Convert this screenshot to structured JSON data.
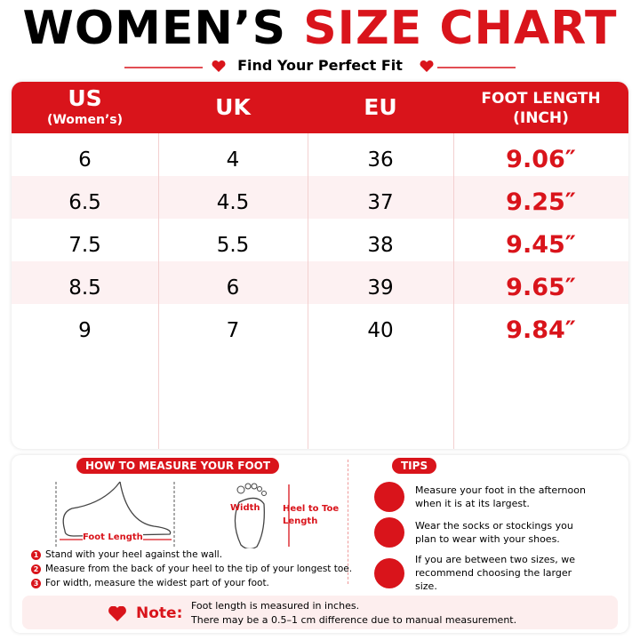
{
  "header": {
    "title_black": "WOMEN’S",
    "title_red": "SIZE CHART",
    "subtitle": "Find Your Perfect Fit"
  },
  "table": {
    "headers": [
      {
        "label": "US",
        "sub": "(Women’s)"
      },
      {
        "label": "UK"
      },
      {
        "label": "EU"
      },
      {
        "label": "FOOT LENGTH",
        "sub": "(INCH)"
      }
    ],
    "rows": [
      [
        "6",
        "4",
        "36",
        "9.06″"
      ],
      [
        "6.5",
        "4.5",
        "37",
        "9.25″"
      ],
      [
        "7.5",
        "5.5",
        "38",
        "9.45″"
      ],
      [
        "8.5",
        "6",
        "39",
        "9.65″"
      ],
      [
        "9",
        "7",
        "40",
        "9.84″"
      ]
    ]
  },
  "measure": {
    "title": "HOW TO MEASURE YOUR FOOT",
    "foot_length": "Foot Length",
    "width": "Width",
    "heel_to_toe": "Heel to Toe Length",
    "steps": [
      {
        "num": "1",
        "text": "Stand with your heel against the wall."
      },
      {
        "num": "2",
        "text": "Measure from the back of your heel to the tip of your longest toe."
      },
      {
        "num": "3",
        "text": "For width, measure the widest part of your foot."
      }
    ]
  },
  "tips": {
    "title": "TIPS",
    "items": [
      "Measure your foot in the afternoon when it is at its largest.",
      "Wear the socks or stockings you plan to wear with your shoes.",
      "If you are between two sizes, we recommend choosing the larger size."
    ]
  },
  "note": {
    "label": "Note:",
    "lines": [
      "Foot length is measured in inches.",
      "There may be a 0.5–1 cm difference due to manual measurement."
    ]
  }
}
